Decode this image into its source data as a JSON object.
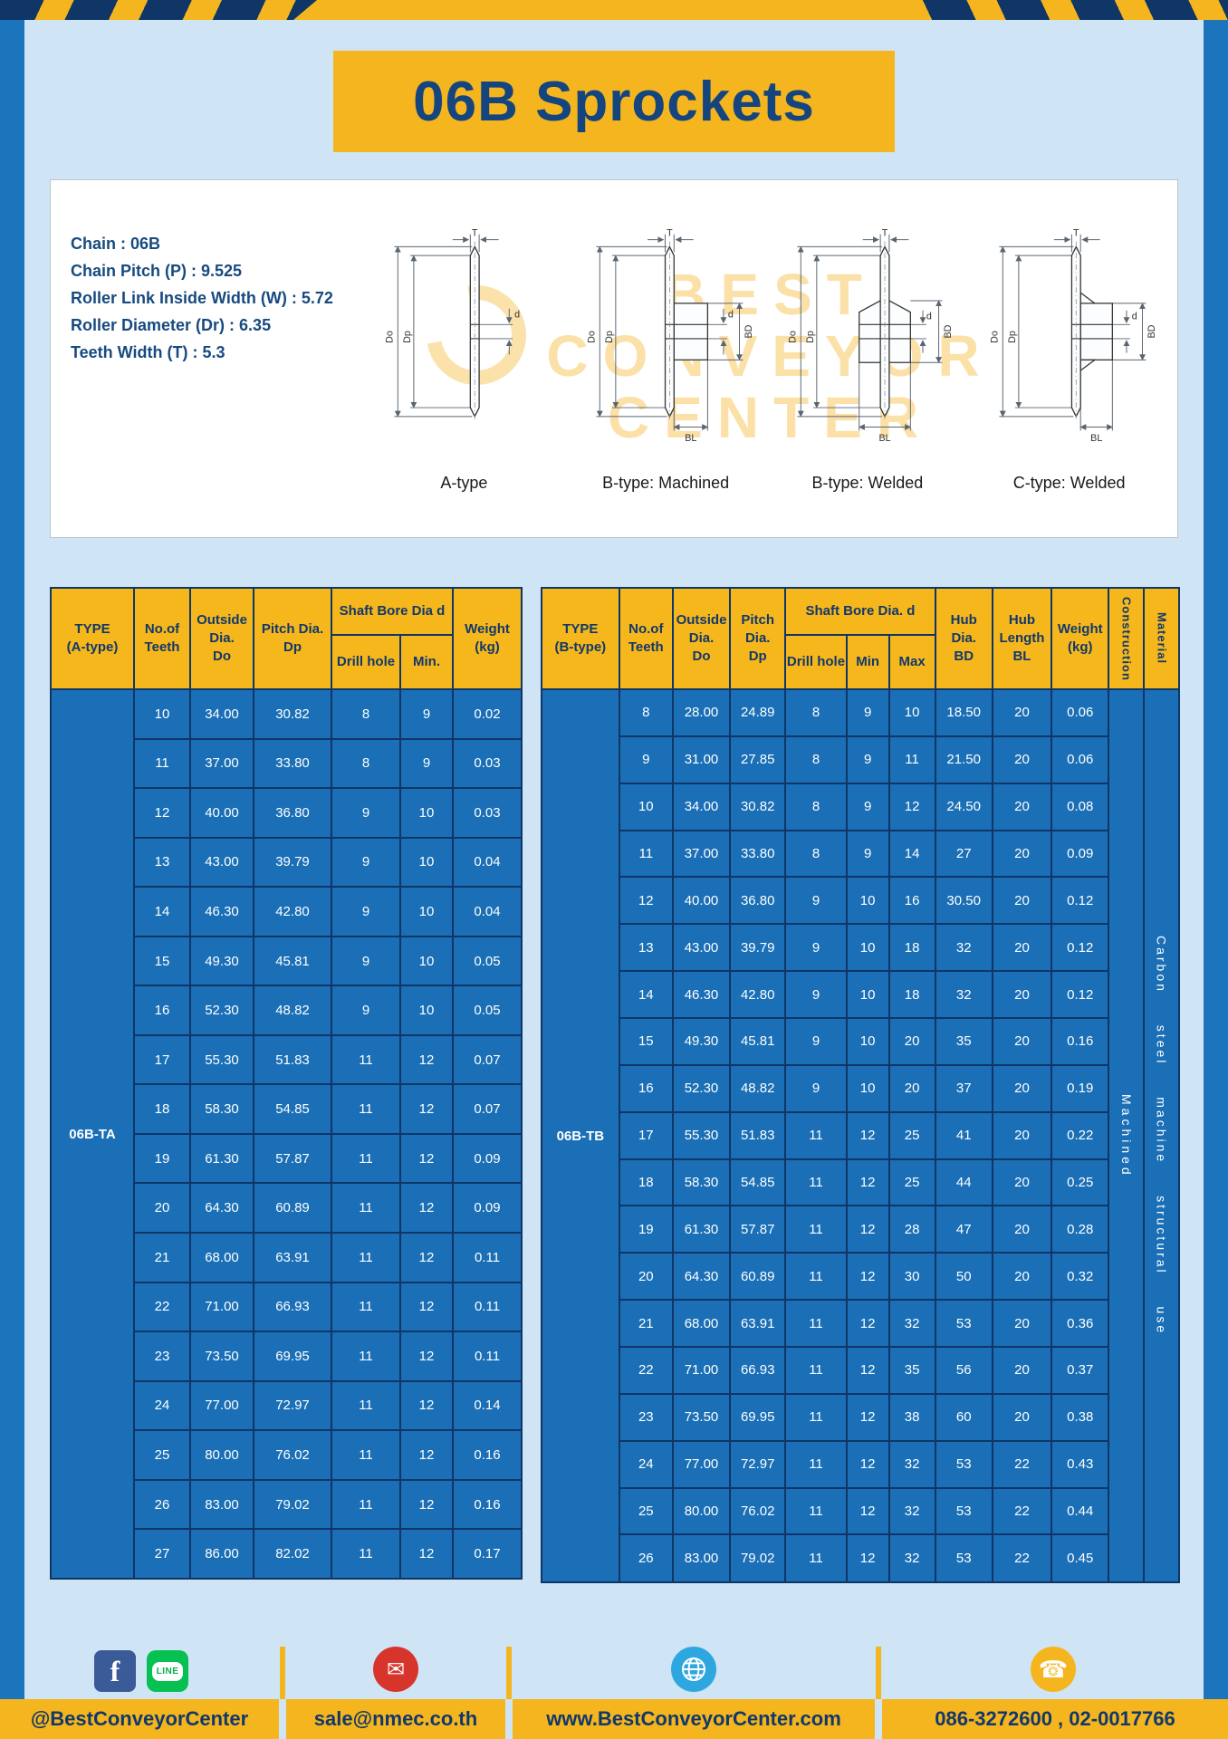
{
  "title": "06B Sprockets",
  "specs": {
    "lines": [
      {
        "label": "Chain",
        "value": "06B"
      },
      {
        "label": "Chain Pitch (P)",
        "value": "9.525"
      },
      {
        "label": "Roller Link Inside Width (W)",
        "value": "5.72"
      },
      {
        "label": "Roller Diameter (Dr)",
        "value": "6.35"
      },
      {
        "label": "Teeth Width (T)",
        "value": "5.3"
      }
    ]
  },
  "diagrams": {
    "captions": [
      "A-type",
      "B-type: Machined",
      "B-type: Welded",
      "C-type: Welded"
    ],
    "labels": {
      "t": "T",
      "d_outer": "Do",
      "d_pitch": "Dp",
      "d_bore": "d",
      "hub_dia": "BD",
      "hub_len": "BL"
    },
    "watermark": [
      "BEST",
      "CONVEYOR",
      "CENTER"
    ]
  },
  "table_a": {
    "type_value": "06B-TA",
    "header": {
      "type": [
        "TYPE",
        "(A-type)"
      ],
      "teeth": [
        "No.of",
        "Teeth"
      ],
      "outside": [
        "Outside",
        "Dia.",
        "Do"
      ],
      "pitch": [
        "Pitch Dia.",
        "Dp"
      ],
      "bore_group": "Shaft Bore Dia d",
      "drill": "Drill hole",
      "min": "Min.",
      "weight": [
        "Weight",
        "(kg)"
      ]
    },
    "rows": [
      [
        "10",
        "34.00",
        "30.82",
        "8",
        "9",
        "0.02"
      ],
      [
        "11",
        "37.00",
        "33.80",
        "8",
        "9",
        "0.03"
      ],
      [
        "12",
        "40.00",
        "36.80",
        "9",
        "10",
        "0.03"
      ],
      [
        "13",
        "43.00",
        "39.79",
        "9",
        "10",
        "0.04"
      ],
      [
        "14",
        "46.30",
        "42.80",
        "9",
        "10",
        "0.04"
      ],
      [
        "15",
        "49.30",
        "45.81",
        "9",
        "10",
        "0.05"
      ],
      [
        "16",
        "52.30",
        "48.82",
        "9",
        "10",
        "0.05"
      ],
      [
        "17",
        "55.30",
        "51.83",
        "11",
        "12",
        "0.07"
      ],
      [
        "18",
        "58.30",
        "54.85",
        "11",
        "12",
        "0.07"
      ],
      [
        "19",
        "61.30",
        "57.87",
        "11",
        "12",
        "0.09"
      ],
      [
        "20",
        "64.30",
        "60.89",
        "11",
        "12",
        "0.09"
      ],
      [
        "21",
        "68.00",
        "63.91",
        "11",
        "12",
        "0.11"
      ],
      [
        "22",
        "71.00",
        "66.93",
        "11",
        "12",
        "0.11"
      ],
      [
        "23",
        "73.50",
        "69.95",
        "11",
        "12",
        "0.11"
      ],
      [
        "24",
        "77.00",
        "72.97",
        "11",
        "12",
        "0.14"
      ],
      [
        "25",
        "80.00",
        "76.02",
        "11",
        "12",
        "0.16"
      ],
      [
        "26",
        "83.00",
        "79.02",
        "11",
        "12",
        "0.16"
      ],
      [
        "27",
        "86.00",
        "82.02",
        "11",
        "12",
        "0.17"
      ]
    ]
  },
  "table_b": {
    "type_value": "06B-TB",
    "construction_value": "Machined",
    "material_value": "Carbon steel machine structural use",
    "header": {
      "type": [
        "TYPE",
        "(B-type)"
      ],
      "teeth": [
        "No.of",
        "Teeth"
      ],
      "outside": [
        "Outside",
        "Dia.",
        "Do"
      ],
      "pitch": [
        "Pitch",
        "Dia.",
        "Dp"
      ],
      "bore_group": "Shaft Bore Dia.  d",
      "drill": "Drill hole",
      "min": "Min",
      "max": "Max",
      "hub_dia": [
        "Hub",
        "Dia.",
        "BD"
      ],
      "hub_len": [
        "Hub",
        "Length",
        "BL"
      ],
      "weight": [
        "Weight",
        "(kg)"
      ],
      "construction": "Construction",
      "material": "Material"
    },
    "rows": [
      [
        "8",
        "28.00",
        "24.89",
        "8",
        "9",
        "10",
        "18.50",
        "20",
        "0.06"
      ],
      [
        "9",
        "31.00",
        "27.85",
        "8",
        "9",
        "11",
        "21.50",
        "20",
        "0.06"
      ],
      [
        "10",
        "34.00",
        "30.82",
        "8",
        "9",
        "12",
        "24.50",
        "20",
        "0.08"
      ],
      [
        "11",
        "37.00",
        "33.80",
        "8",
        "9",
        "14",
        "27",
        "20",
        "0.09"
      ],
      [
        "12",
        "40.00",
        "36.80",
        "9",
        "10",
        "16",
        "30.50",
        "20",
        "0.12"
      ],
      [
        "13",
        "43.00",
        "39.79",
        "9",
        "10",
        "18",
        "32",
        "20",
        "0.12"
      ],
      [
        "14",
        "46.30",
        "42.80",
        "9",
        "10",
        "18",
        "32",
        "20",
        "0.12"
      ],
      [
        "15",
        "49.30",
        "45.81",
        "9",
        "10",
        "20",
        "35",
        "20",
        "0.16"
      ],
      [
        "16",
        "52.30",
        "48.82",
        "9",
        "10",
        "20",
        "37",
        "20",
        "0.19"
      ],
      [
        "17",
        "55.30",
        "51.83",
        "11",
        "12",
        "25",
        "41",
        "20",
        "0.22"
      ],
      [
        "18",
        "58.30",
        "54.85",
        "11",
        "12",
        "25",
        "44",
        "20",
        "0.25"
      ],
      [
        "19",
        "61.30",
        "57.87",
        "11",
        "12",
        "28",
        "47",
        "20",
        "0.28"
      ],
      [
        "20",
        "64.30",
        "60.89",
        "11",
        "12",
        "30",
        "50",
        "20",
        "0.32"
      ],
      [
        "21",
        "68.00",
        "63.91",
        "11",
        "12",
        "32",
        "53",
        "20",
        "0.36"
      ],
      [
        "22",
        "71.00",
        "66.93",
        "11",
        "12",
        "35",
        "56",
        "20",
        "0.37"
      ],
      [
        "23",
        "73.50",
        "69.95",
        "11",
        "12",
        "38",
        "60",
        "20",
        "0.38"
      ],
      [
        "24",
        "77.00",
        "72.97",
        "11",
        "12",
        "32",
        "53",
        "22",
        "0.43"
      ],
      [
        "25",
        "80.00",
        "76.02",
        "11",
        "12",
        "32",
        "53",
        "22",
        "0.44"
      ],
      [
        "26",
        "83.00",
        "79.02",
        "11",
        "12",
        "32",
        "53",
        "22",
        "0.45"
      ]
    ]
  },
  "footer": {
    "sections": [
      {
        "icons": [
          "facebook",
          "line"
        ],
        "text": "@BestConveyorCenter"
      },
      {
        "icons": [
          "email"
        ],
        "text": "sale@nmec.co.th"
      },
      {
        "icons": [
          "globe"
        ],
        "text": "www.BestConveyorCenter.com"
      },
      {
        "icons": [
          "phone"
        ],
        "text": "086-3272600 , 02-0017766"
      }
    ]
  }
}
